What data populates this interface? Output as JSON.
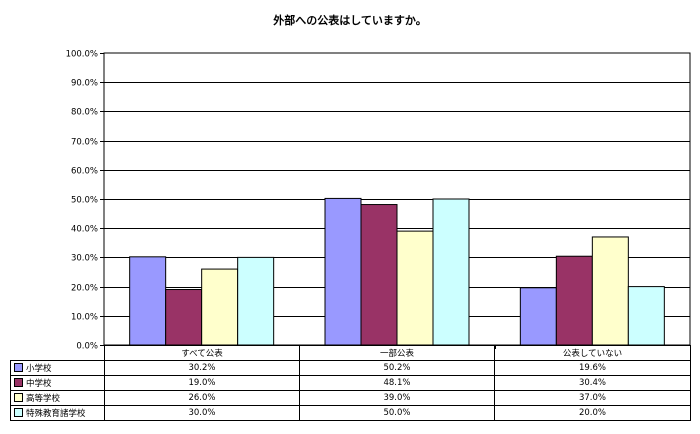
{
  "chart_data": {
    "type": "bar",
    "title": "外部への公表はしていますか。",
    "categories": [
      "すべて公表",
      "一部公表",
      "公表していない"
    ],
    "series": [
      {
        "name": "小学校",
        "values": [
          30.2,
          50.2,
          19.6
        ],
        "labels": [
          "30.2%",
          "50.2%",
          "19.6%"
        ],
        "color": "#9999ff"
      },
      {
        "name": "中学校",
        "values": [
          19.0,
          48.1,
          30.4
        ],
        "labels": [
          "19.0%",
          "48.1%",
          "30.4%"
        ],
        "color": "#993366"
      },
      {
        "name": "高等学校",
        "values": [
          26.0,
          39.0,
          37.0
        ],
        "labels": [
          "26.0%",
          "39.0%",
          "37.0%"
        ],
        "color": "#ffffcc"
      },
      {
        "name": "特殊教育諸学校",
        "values": [
          30.0,
          50.0,
          20.0
        ],
        "labels": [
          "30.0%",
          "50.0%",
          "20.0%"
        ],
        "color": "#ccffff"
      }
    ],
    "ylim": [
      0,
      100
    ],
    "yticks": [
      "0.0%",
      "10.0%",
      "20.0%",
      "30.0%",
      "40.0%",
      "50.0%",
      "60.0%",
      "70.0%",
      "80.0%",
      "90.0%",
      "100.0%"
    ],
    "grid": true,
    "legend": "data-table"
  }
}
